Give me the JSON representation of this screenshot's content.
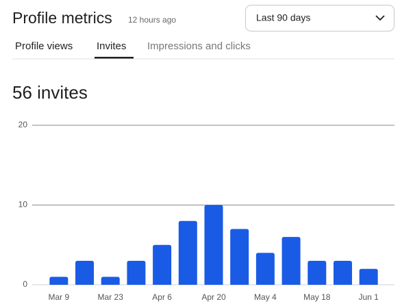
{
  "header": {
    "title": "Profile metrics",
    "updated": "12 hours ago",
    "range": "Last 90 days"
  },
  "tabs": [
    "Profile views",
    "Invites",
    "Impressions and clicks"
  ],
  "summary": "56 invites",
  "chart_data": {
    "type": "bar",
    "categories": [
      "Mar 9",
      null,
      "Mar 23",
      null,
      "Apr 6",
      null,
      "Apr 20",
      null,
      "May 4",
      null,
      "May 18",
      null,
      "Jun 1"
    ],
    "values": [
      1,
      3,
      1,
      3,
      5,
      8,
      10,
      7,
      4,
      6,
      3,
      3,
      2
    ],
    "color": "#1a5be6",
    "ylim": [
      0,
      20
    ],
    "yticks": [
      0,
      10,
      20
    ],
    "grid": true
  }
}
